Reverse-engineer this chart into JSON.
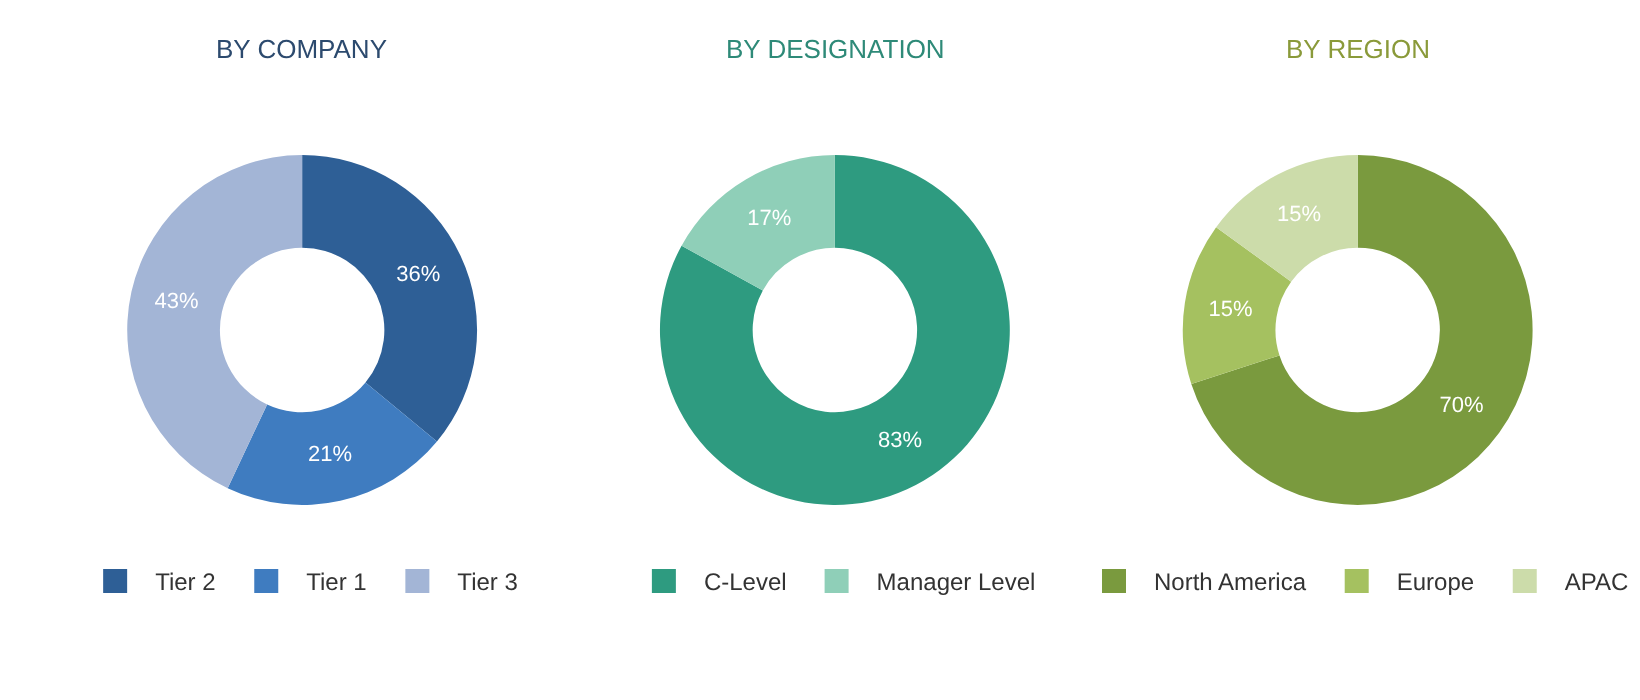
{
  "chart_data": [
    {
      "type": "donut",
      "title": "BY COMPANY",
      "categories": [
        "Tier 2",
        "Tier 1",
        "Tier 3"
      ],
      "values": [
        36,
        21,
        43
      ],
      "value_labels": [
        "36%",
        "21%",
        "43%"
      ],
      "colors": [
        "#2e5f96",
        "#3f7cc0",
        "#a3b5d6"
      ],
      "legend": "bottom"
    },
    {
      "type": "donut",
      "title": "BY DESIGNATION",
      "categories": [
        "C-Level",
        "Manager Level"
      ],
      "values": [
        83,
        17
      ],
      "value_labels": [
        "83%",
        "17%"
      ],
      "colors": [
        "#2e9b80",
        "#8fcfb8"
      ],
      "legend": "bottom"
    },
    {
      "type": "donut",
      "title": "BY REGION",
      "categories": [
        "North America",
        "Europe",
        "APAC"
      ],
      "values": [
        70,
        15,
        15
      ],
      "value_labels": [
        "70%",
        "15%",
        "15%"
      ],
      "colors": [
        "#7a9a3e",
        "#a5c160",
        "#ccdcaa"
      ],
      "legend": "bottom"
    }
  ]
}
